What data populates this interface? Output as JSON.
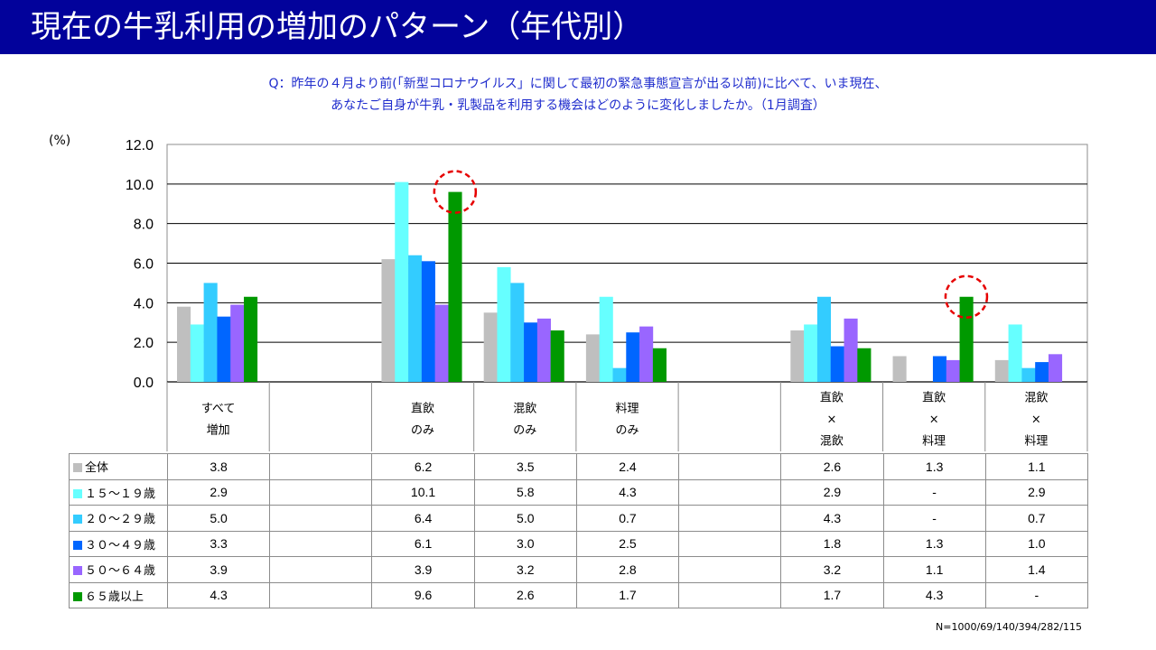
{
  "header": {
    "title": "現在の牛乳利用の増加のパターン（年代別）",
    "question_line1": "Q：昨年の４月より前(「新型コロナウイルス」に関して最初の緊急事態宣言が出る以前)に比べて、いま現在、",
    "question_line2": "あなたご自身が牛乳・乳製品を利用する機会はどのように変化しましたか。（1月調査）"
  },
  "unit_label": "(%)",
  "footnote": "N=1000/69/140/394/282/115",
  "chart_data": {
    "type": "bar",
    "ylim": [
      0,
      12
    ],
    "yticks": [
      "0.0",
      "2.0",
      "4.0",
      "6.0",
      "8.0",
      "10.0",
      "12.0"
    ],
    "grid": true,
    "categories": [
      [
        "すべて",
        "増加"
      ],
      [],
      [
        "直飲",
        "のみ"
      ],
      [
        "混飲",
        "のみ"
      ],
      [
        "料理",
        "のみ"
      ],
      [],
      [
        "直飲",
        "×",
        "混飲"
      ],
      [
        "直飲",
        "×",
        "料理"
      ],
      [
        "混飲",
        "×",
        "料理"
      ]
    ],
    "series": [
      {
        "name": "全体",
        "color": "#bfbfbf",
        "values": [
          3.8,
          null,
          6.2,
          3.5,
          2.4,
          null,
          2.6,
          1.3,
          1.1
        ],
        "display": [
          "3.8",
          "",
          "6.2",
          "3.5",
          "2.4",
          "",
          "2.6",
          "1.3",
          "1.1"
        ]
      },
      {
        "name": "１５～１９歳",
        "color": "#66ffff",
        "values": [
          2.9,
          null,
          10.1,
          5.8,
          4.3,
          null,
          2.9,
          null,
          2.9
        ],
        "display": [
          "2.9",
          "",
          "10.1",
          "5.8",
          "4.3",
          "",
          "2.9",
          "-",
          "2.9"
        ]
      },
      {
        "name": "２０～２９歳",
        "color": "#33ccff",
        "values": [
          5.0,
          null,
          6.4,
          5.0,
          0.7,
          null,
          4.3,
          null,
          0.7
        ],
        "display": [
          "5.0",
          "",
          "6.4",
          "5.0",
          "0.7",
          "",
          "4.3",
          "-",
          "0.7"
        ]
      },
      {
        "name": "３０～４９歳",
        "color": "#0066ff",
        "values": [
          3.3,
          null,
          6.1,
          3.0,
          2.5,
          null,
          1.8,
          1.3,
          1.0
        ],
        "display": [
          "3.3",
          "",
          "6.1",
          "3.0",
          "2.5",
          "",
          "1.8",
          "1.3",
          "1.0"
        ]
      },
      {
        "name": "５０～６４歳",
        "color": "#9966ff",
        "values": [
          3.9,
          null,
          3.9,
          3.2,
          2.8,
          null,
          3.2,
          1.1,
          1.4
        ],
        "display": [
          "3.9",
          "",
          "3.9",
          "3.2",
          "2.8",
          "",
          "3.2",
          "1.1",
          "1.4"
        ]
      },
      {
        "name": "６５歳以上",
        "color": "#009900",
        "values": [
          4.3,
          null,
          9.6,
          2.6,
          1.7,
          null,
          1.7,
          4.3,
          null
        ],
        "display": [
          "4.3",
          "",
          "9.6",
          "2.6",
          "1.7",
          "",
          "1.7",
          "4.3",
          "-"
        ]
      }
    ],
    "highlights": [
      {
        "category_index": 2,
        "series_index": 5
      },
      {
        "category_index": 7,
        "series_index": 5
      }
    ],
    "highlight_color": "#e60000"
  }
}
